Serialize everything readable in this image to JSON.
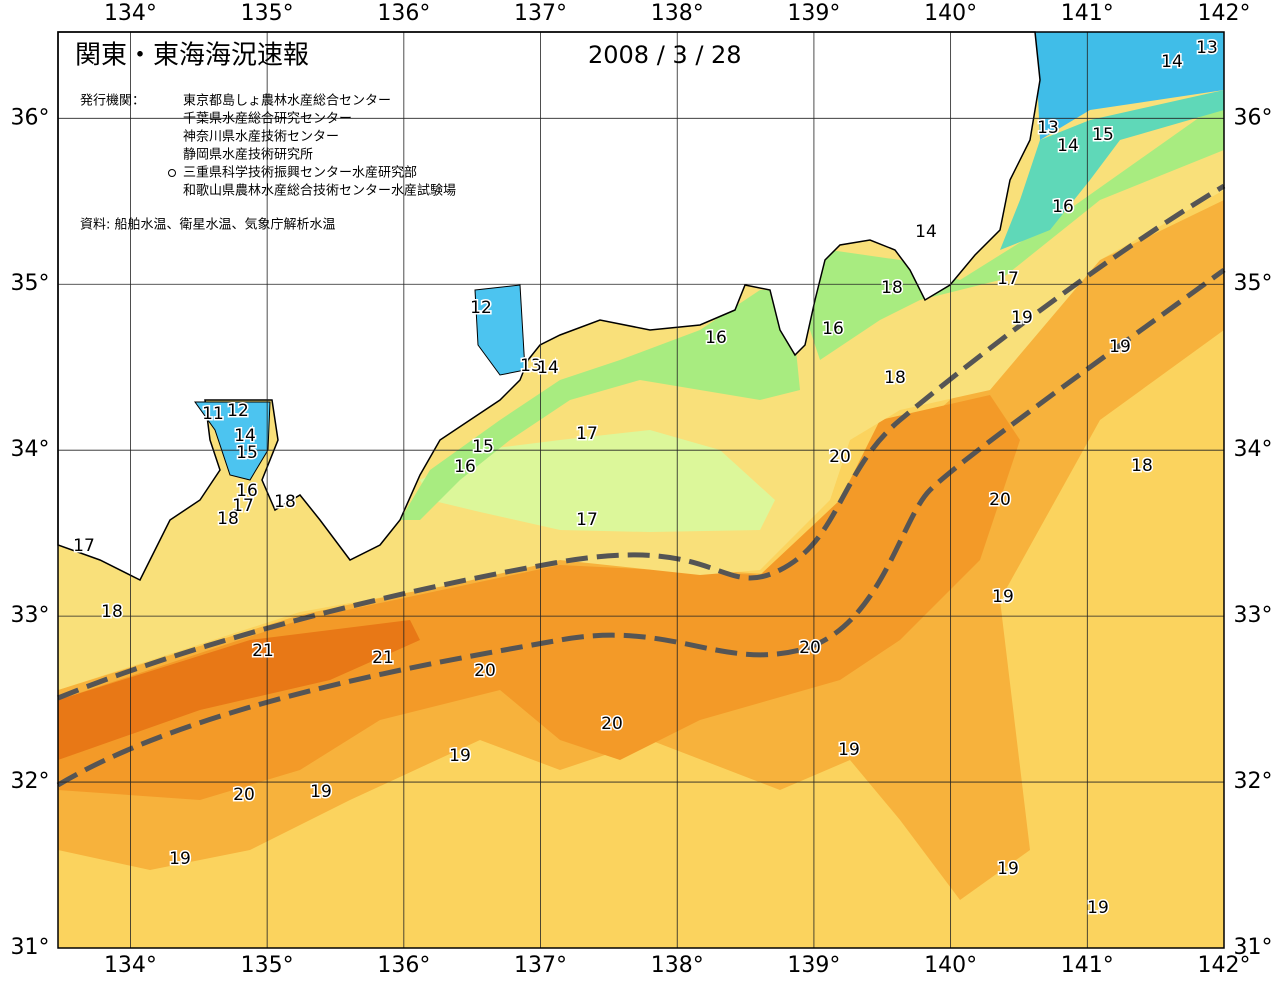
{
  "map": {
    "title": "関東・東海海況速報",
    "date": "2008 / 3 / 28",
    "publisher_label": "発行機関：",
    "publishers": [
      "東京都島しょ農林水産総合センター",
      "千葉県水産総合研究センター",
      "神奈川県水産技術センター",
      "静岡県水産技術研究所",
      "三重県科学技術振興センター水産研究部",
      "和歌山県農林水産総合技術センター水産試験場"
    ],
    "source": "資料: 船舶水温、衛星水温、気象庁解析水温",
    "xlim": [
      133.47,
      142
    ],
    "ylim": [
      31,
      36.52
    ],
    "lon_ticks": [
      {
        "value": 134,
        "label": "134°"
      },
      {
        "value": 135,
        "label": "135°"
      },
      {
        "value": 136,
        "label": "136°"
      },
      {
        "value": 137,
        "label": "137°"
      },
      {
        "value": 138,
        "label": "138°"
      },
      {
        "value": 139,
        "label": "139°"
      },
      {
        "value": 140,
        "label": "140°"
      },
      {
        "value": 141,
        "label": "141°"
      },
      {
        "value": 142,
        "label": "142°"
      }
    ],
    "lat_ticks": [
      {
        "value": 36,
        "label": "36°"
      },
      {
        "value": 35,
        "label": "35°"
      },
      {
        "value": 34,
        "label": "34°"
      },
      {
        "value": 33,
        "label": "33°"
      },
      {
        "value": 32,
        "label": "32°"
      },
      {
        "value": 31,
        "label": "31°"
      }
    ],
    "isotherm_labels": [
      13,
      14,
      13,
      14,
      15,
      16,
      14,
      17,
      18,
      19,
      16,
      19,
      18,
      16,
      12,
      13,
      14,
      17,
      15,
      16,
      20,
      18,
      20,
      17,
      11,
      12,
      14,
      15,
      16,
      17,
      18,
      18,
      17,
      18,
      19,
      21,
      21,
      20,
      20,
      20,
      19,
      19,
      20,
      19,
      19,
      19,
      19
    ]
  }
}
